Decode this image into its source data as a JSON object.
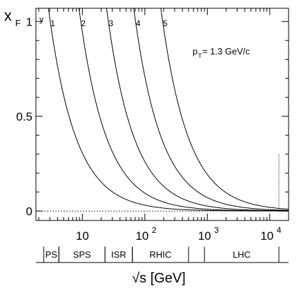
{
  "chart_data": {
    "type": "line",
    "xscale": "log",
    "xlim": [
      1.8,
      20000
    ],
    "ylim": [
      -0.05,
      1.07
    ],
    "ylabel": "x",
    "ylabel_sub": "F",
    "xlabel": "√s [GeV]",
    "annotation": {
      "main": "p",
      "sub": "T",
      "rest": " = 1.3 GeV/c"
    },
    "curve_group_label": "y",
    "x_ticks": [
      {
        "value": 10,
        "base": "10",
        "exp": ""
      },
      {
        "value": 100,
        "base": "10",
        "exp": "2"
      },
      {
        "value": 1000,
        "base": "10",
        "exp": "3"
      },
      {
        "value": 10000,
        "base": "10",
        "exp": "4"
      }
    ],
    "y_ticks": [
      {
        "value": 0,
        "label": "0"
      },
      {
        "value": 0.5,
        "label": "0.5"
      },
      {
        "value": 1,
        "label": "1"
      }
    ],
    "pT": 1.3,
    "series": [
      {
        "name": "1",
        "y": 1
      },
      {
        "name": "2",
        "y": 2
      },
      {
        "name": "3",
        "y": 3
      },
      {
        "name": "4",
        "y": 4
      },
      {
        "name": "5",
        "y": 5
      }
    ],
    "vertical_marker_x": 14000,
    "vertical_marker_top": 0.3,
    "zero_line": true,
    "accelerators": [
      {
        "name": "PS",
        "from": 2.4,
        "to": 4.2
      },
      {
        "name": "SPS",
        "from": 4.2,
        "to": 23
      },
      {
        "name": "ISR",
        "from": 23,
        "to": 63
      },
      {
        "name": "RHIC",
        "from": 63,
        "to": 500
      },
      {
        "name": "LHC",
        "from": 900,
        "to": 14000
      }
    ]
  }
}
